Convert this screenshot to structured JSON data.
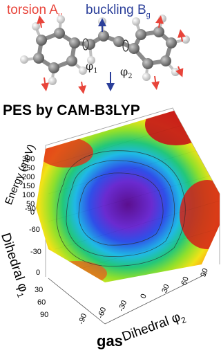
{
  "header": {
    "torsion": {
      "text": "torsion A",
      "sub": "u",
      "color": "#e8443a"
    },
    "buckling": {
      "text": "buckling B",
      "sub": "g",
      "color": "#2b3f9a"
    }
  },
  "molecule": {
    "phi1": {
      "base": "φ",
      "sub": "1"
    },
    "phi2": {
      "base": "φ",
      "sub": "2"
    }
  },
  "chart": {
    "title": "PES by CAM-B3LYP",
    "caption": "gas",
    "zlabel": "Energy (meV)",
    "ylabel": {
      "base": "Dihedral φ",
      "sub": "1"
    },
    "xlabel": {
      "base": "Dihedral φ",
      "sub": "2"
    },
    "z_ticks": [
      "300",
      "250",
      "200",
      "150",
      "100",
      "50",
      "0"
    ],
    "y_ticks": [
      "-90",
      "-60",
      "-30",
      "0",
      "30",
      "60",
      "90"
    ],
    "x_ticks": [
      "-90",
      "-60",
      "-30",
      "0",
      "30",
      "60",
      "90"
    ]
  },
  "chart_data": {
    "type": "surface",
    "title": "PES by CAM-B3LYP",
    "xlabel": "Dihedral φ2",
    "ylabel": "Dihedral φ1",
    "zlabel": "Energy (meV)",
    "xlim": [
      -90,
      90
    ],
    "ylim": [
      -90,
      90
    ],
    "zlim": [
      0,
      300
    ],
    "colormap": "rainbow (violet = low, red = high)"
  }
}
